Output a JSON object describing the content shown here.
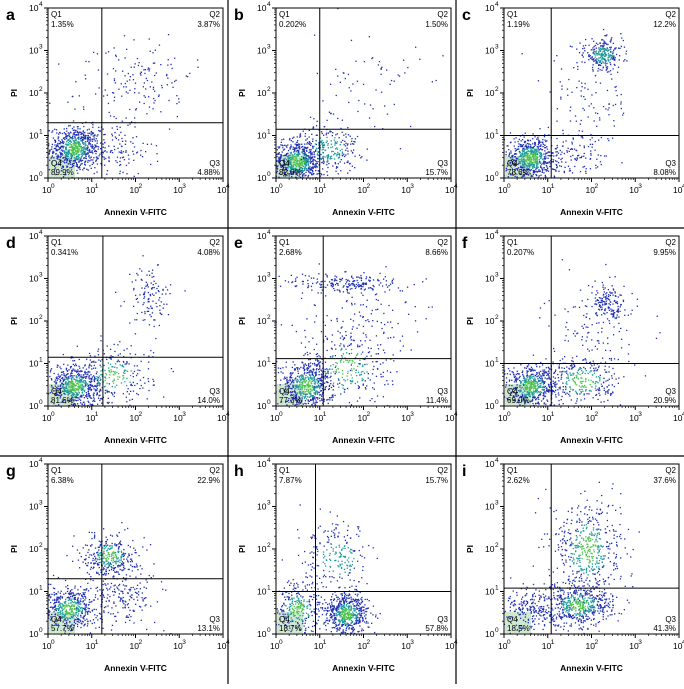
{
  "chart_data": [
    {
      "type": "scatter",
      "panel_label": "a",
      "xlabel": "Annexin V-FITC",
      "ylabel": "PI",
      "xlim": [
        1,
        10000
      ],
      "ylim": [
        1,
        10000
      ],
      "x_ticks": [
        "10",
        "10",
        "10",
        "10",
        "10"
      ],
      "x_tick_exponents": [
        "0",
        "1",
        "2",
        "3",
        "4"
      ],
      "y_ticks": [
        "10",
        "10",
        "10",
        "10",
        "10"
      ],
      "y_tick_exponents": [
        "0",
        "1",
        "2",
        "3",
        "4"
      ],
      "gate_x": 17,
      "gate_y": 20,
      "quadrants": {
        "Q1": {
          "name": "Q1",
          "value": "1.35%"
        },
        "Q2": {
          "name": "Q2",
          "value": "3.87%"
        },
        "Q3": {
          "name": "Q3",
          "value": "4.88%"
        },
        "Q4": {
          "name": "Q4",
          "value": "89.9%"
        }
      },
      "clusters": [
        {
          "x": 4,
          "y": 5,
          "spread_x": 0.28,
          "spread_y": 0.26,
          "count": 700
        },
        {
          "x": 30,
          "y": 4,
          "spread_x": 0.45,
          "spread_y": 0.3,
          "count": 120
        },
        {
          "x": 200,
          "y": 300,
          "spread_x": 0.5,
          "spread_y": 0.5,
          "count": 90
        },
        {
          "x": 40,
          "y": 80,
          "spread_x": 0.6,
          "spread_y": 0.6,
          "count": 80
        }
      ]
    },
    {
      "type": "scatter",
      "panel_label": "b",
      "xlabel": "Annexin V-FITC",
      "ylabel": "PI",
      "xlim": [
        1,
        10000
      ],
      "ylim": [
        1,
        10000
      ],
      "x_ticks": [
        "10",
        "10",
        "10",
        "10",
        "10"
      ],
      "x_tick_exponents": [
        "0",
        "1",
        "2",
        "3",
        "4"
      ],
      "y_ticks": [
        "10",
        "10",
        "10",
        "10",
        "10"
      ],
      "y_tick_exponents": [
        "0",
        "1",
        "2",
        "3",
        "4"
      ],
      "gate_x": 10,
      "gate_y": 14,
      "quadrants": {
        "Q1": {
          "name": "Q1",
          "value": "0.202%"
        },
        "Q2": {
          "name": "Q2",
          "value": "1.50%"
        },
        "Q3": {
          "name": "Q3",
          "value": "15.7%"
        },
        "Q4": {
          "name": "Q4",
          "value": "82.6%"
        }
      },
      "clusters": [
        {
          "x": 3,
          "y": 2.5,
          "spread_x": 0.3,
          "spread_y": 0.25,
          "count": 650
        },
        {
          "x": 15,
          "y": 5,
          "spread_x": 0.35,
          "spread_y": 0.3,
          "count": 250
        },
        {
          "x": 120,
          "y": 120,
          "spread_x": 0.6,
          "spread_y": 0.7,
          "count": 70
        }
      ]
    },
    {
      "type": "scatter",
      "panel_label": "c",
      "xlabel": "Annexin V-FITC",
      "ylabel": "PI",
      "xlim": [
        1,
        10000
      ],
      "ylim": [
        1,
        10000
      ],
      "x_ticks": [
        "10",
        "10",
        "10",
        "10",
        "10"
      ],
      "x_tick_exponents": [
        "0",
        "1",
        "2",
        "3",
        "4"
      ],
      "y_ticks": [
        "10",
        "10",
        "10",
        "10",
        "10"
      ],
      "y_tick_exponents": [
        "0",
        "1",
        "2",
        "3",
        "4"
      ],
      "gate_x": 12,
      "gate_y": 10,
      "quadrants": {
        "Q1": {
          "name": "Q1",
          "value": "1.19%"
        },
        "Q2": {
          "name": "Q2",
          "value": "12.2%"
        },
        "Q3": {
          "name": "Q3",
          "value": "8.08%"
        },
        "Q4": {
          "name": "Q4",
          "value": "78.6%"
        }
      },
      "clusters": [
        {
          "x": 4,
          "y": 3,
          "spread_x": 0.3,
          "spread_y": 0.25,
          "count": 650
        },
        {
          "x": 180,
          "y": 800,
          "spread_x": 0.22,
          "spread_y": 0.18,
          "count": 250
        },
        {
          "x": 80,
          "y": 60,
          "spread_x": 0.5,
          "spread_y": 0.7,
          "count": 120
        },
        {
          "x": 40,
          "y": 3,
          "spread_x": 0.4,
          "spread_y": 0.3,
          "count": 100
        }
      ]
    },
    {
      "type": "scatter",
      "panel_label": "d",
      "xlabel": "Annexin V-FITC",
      "ylabel": "PI",
      "xlim": [
        1,
        10000
      ],
      "ylim": [
        1,
        10000
      ],
      "x_ticks": [
        "10",
        "10",
        "10",
        "10",
        "10"
      ],
      "x_tick_exponents": [
        "0",
        "1",
        "2",
        "3",
        "4"
      ],
      "y_ticks": [
        "10",
        "10",
        "10",
        "10",
        "10"
      ],
      "y_tick_exponents": [
        "0",
        "1",
        "2",
        "3",
        "4"
      ],
      "gate_x": 18,
      "gate_y": 14,
      "quadrants": {
        "Q1": {
          "name": "Q1",
          "value": "0.341%"
        },
        "Q2": {
          "name": "Q2",
          "value": "4.08%"
        },
        "Q3": {
          "name": "Q3",
          "value": "14.0%"
        },
        "Q4": {
          "name": "Q4",
          "value": "81.6%"
        }
      },
      "clusters": [
        {
          "x": 4,
          "y": 3,
          "spread_x": 0.3,
          "spread_y": 0.25,
          "count": 600
        },
        {
          "x": 30,
          "y": 5,
          "spread_x": 0.45,
          "spread_y": 0.35,
          "count": 260
        },
        {
          "x": 200,
          "y": 400,
          "spread_x": 0.25,
          "spread_y": 0.35,
          "count": 120
        }
      ]
    },
    {
      "type": "scatter",
      "panel_label": "e",
      "xlabel": "Annexin V-FITC",
      "ylabel": "PI",
      "xlim": [
        1,
        10000
      ],
      "ylim": [
        1,
        10000
      ],
      "x_ticks": [
        "10",
        "10",
        "10",
        "10",
        "10"
      ],
      "x_tick_exponents": [
        "0",
        "1",
        "2",
        "3",
        "4"
      ],
      "y_ticks": [
        "10",
        "10",
        "10",
        "10",
        "10"
      ],
      "y_tick_exponents": [
        "0",
        "1",
        "2",
        "3",
        "4"
      ],
      "gate_x": 12,
      "gate_y": 13,
      "quadrants": {
        "Q1": {
          "name": "Q1",
          "value": "2.68%"
        },
        "Q2": {
          "name": "Q2",
          "value": "8.66%"
        },
        "Q3": {
          "name": "Q3",
          "value": "11.4%"
        },
        "Q4": {
          "name": "Q4",
          "value": "77.3%"
        }
      },
      "clusters": [
        {
          "x": 5,
          "y": 3,
          "spread_x": 0.3,
          "spread_y": 0.3,
          "count": 600
        },
        {
          "x": 40,
          "y": 8,
          "spread_x": 0.5,
          "spread_y": 0.5,
          "count": 260
        },
        {
          "x": 40,
          "y": 800,
          "spread_x": 0.7,
          "spread_y": 0.12,
          "count": 200
        },
        {
          "x": 60,
          "y": 80,
          "spread_x": 0.6,
          "spread_y": 0.6,
          "count": 150
        }
      ]
    },
    {
      "type": "scatter",
      "panel_label": "f",
      "xlabel": "Annexin V-FITC",
      "ylabel": "PI",
      "xlim": [
        1,
        10000
      ],
      "ylim": [
        1,
        10000
      ],
      "x_ticks": [
        "10",
        "10",
        "10",
        "10",
        "10"
      ],
      "x_tick_exponents": [
        "0",
        "1",
        "2",
        "3",
        "4"
      ],
      "y_ticks": [
        "10",
        "10",
        "10",
        "10",
        "10"
      ],
      "y_tick_exponents": [
        "0",
        "1",
        "2",
        "3",
        "4"
      ],
      "gate_x": 12,
      "gate_y": 10,
      "quadrants": {
        "Q1": {
          "name": "Q1",
          "value": "0.207%"
        },
        "Q2": {
          "name": "Q2",
          "value": "9.95%"
        },
        "Q3": {
          "name": "Q3",
          "value": "20.9%"
        },
        "Q4": {
          "name": "Q4",
          "value": "69.0%"
        }
      },
      "clusters": [
        {
          "x": 4,
          "y": 3,
          "spread_x": 0.3,
          "spread_y": 0.25,
          "count": 550
        },
        {
          "x": 60,
          "y": 4,
          "spread_x": 0.45,
          "spread_y": 0.3,
          "count": 300
        },
        {
          "x": 250,
          "y": 250,
          "spread_x": 0.2,
          "spread_y": 0.25,
          "count": 160
        },
        {
          "x": 80,
          "y": 60,
          "spread_x": 0.5,
          "spread_y": 0.5,
          "count": 100
        }
      ]
    },
    {
      "type": "scatter",
      "panel_label": "g",
      "xlabel": "Annexin V-FITC",
      "ylabel": "PI",
      "xlim": [
        1,
        10000
      ],
      "ylim": [
        1,
        10000
      ],
      "x_ticks": [
        "10",
        "10",
        "10",
        "10",
        "10"
      ],
      "x_tick_exponents": [
        "0",
        "1",
        "2",
        "3",
        "4"
      ],
      "y_ticks": [
        "10",
        "10",
        "10",
        "10",
        "10"
      ],
      "y_tick_exponents": [
        "0",
        "1",
        "2",
        "3",
        "4"
      ],
      "gate_x": 17,
      "gate_y": 20,
      "quadrants": {
        "Q1": {
          "name": "Q1",
          "value": "6.38%"
        },
        "Q2": {
          "name": "Q2",
          "value": "22.9%"
        },
        "Q3": {
          "name": "Q3",
          "value": "13.1%"
        },
        "Q4": {
          "name": "Q4",
          "value": "57.7%"
        }
      },
      "clusters": [
        {
          "x": 3,
          "y": 4,
          "spread_x": 0.3,
          "spread_y": 0.25,
          "count": 500
        },
        {
          "x": 25,
          "y": 70,
          "spread_x": 0.3,
          "spread_y": 0.25,
          "count": 350
        },
        {
          "x": 50,
          "y": 8,
          "spread_x": 0.45,
          "spread_y": 0.35,
          "count": 200
        }
      ]
    },
    {
      "type": "scatter",
      "panel_label": "h",
      "xlabel": "Annexin V-FITC",
      "ylabel": "PI",
      "xlim": [
        1,
        10000
      ],
      "ylim": [
        1,
        10000
      ],
      "x_ticks": [
        "10",
        "10",
        "10",
        "10",
        "10"
      ],
      "x_tick_exponents": [
        "0",
        "1",
        "2",
        "3",
        "4"
      ],
      "y_ticks": [
        "10",
        "10",
        "10",
        "10",
        "10"
      ],
      "y_tick_exponents": [
        "0",
        "1",
        "2",
        "3",
        "4"
      ],
      "gate_x": 8,
      "gate_y": 10,
      "quadrants": {
        "Q1": {
          "name": "Q1",
          "value": "7.87%"
        },
        "Q2": {
          "name": "Q2",
          "value": "15.7%"
        },
        "Q3": {
          "name": "Q3",
          "value": "57.8%"
        },
        "Q4": {
          "name": "Q4",
          "value": "18.7%"
        }
      },
      "clusters": [
        {
          "x": 40,
          "y": 3,
          "spread_x": 0.25,
          "spread_y": 0.25,
          "count": 600
        },
        {
          "x": 3,
          "y": 4,
          "spread_x": 0.3,
          "spread_y": 0.3,
          "count": 300
        },
        {
          "x": 25,
          "y": 60,
          "spread_x": 0.4,
          "spread_y": 0.4,
          "count": 220
        }
      ]
    },
    {
      "type": "scatter",
      "panel_label": "i",
      "xlabel": "Annexin V-FITC",
      "ylabel": "PI",
      "xlim": [
        1,
        10000
      ],
      "ylim": [
        1,
        10000
      ],
      "x_ticks": [
        "10",
        "10",
        "10",
        "10",
        "10"
      ],
      "x_tick_exponents": [
        "0",
        "1",
        "2",
        "3",
        "4"
      ],
      "y_ticks": [
        "10",
        "10",
        "10",
        "10",
        "10"
      ],
      "y_tick_exponents": [
        "0",
        "1",
        "2",
        "3",
        "4"
      ],
      "gate_x": 12,
      "gate_y": 12,
      "quadrants": {
        "Q1": {
          "name": "Q1",
          "value": "2.62%"
        },
        "Q2": {
          "name": "Q2",
          "value": "37.6%"
        },
        "Q3": {
          "name": "Q3",
          "value": "41.3%"
        },
        "Q4": {
          "name": "Q4",
          "value": "18.5%"
        }
      },
      "clusters": [
        {
          "x": 50,
          "y": 5,
          "spread_x": 0.4,
          "spread_y": 0.25,
          "count": 550
        },
        {
          "x": 80,
          "y": 100,
          "spread_x": 0.4,
          "spread_y": 0.6,
          "count": 500
        },
        {
          "x": 4,
          "y": 4,
          "spread_x": 0.3,
          "spread_y": 0.25,
          "count": 200
        }
      ]
    }
  ],
  "colors": {
    "axis": "#000000",
    "dots": "#1f2fb0",
    "dense_mid": "#1f9a9a",
    "dense_high": "#4cc24c",
    "q4_box": "#cfe8d0"
  }
}
